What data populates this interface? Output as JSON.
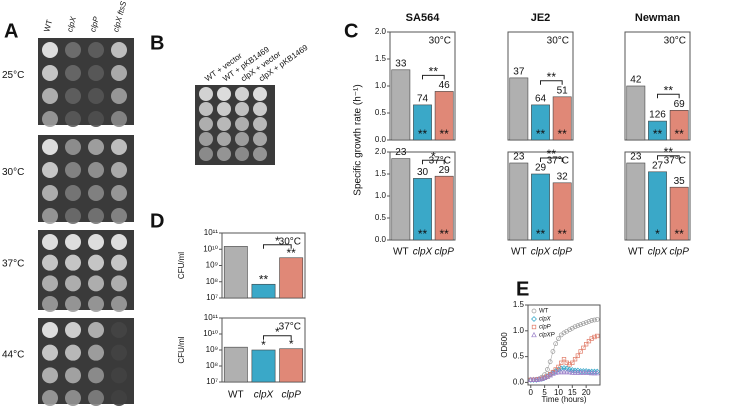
{
  "panel_labels": [
    "A",
    "B",
    "C",
    "D",
    "E"
  ],
  "plates_a": {
    "columns": [
      "WT",
      "clpX",
      "clpP",
      "clpX ftsS"
    ],
    "rows": [
      "25°C",
      "30°C",
      "37°C",
      "44°C"
    ]
  },
  "plates_b": {
    "columns": [
      "WT + vector",
      "WT + pKB1469",
      "clpX + vector",
      "clpX + pKB1469"
    ]
  },
  "chart_data": [
    {
      "type": "bar",
      "title": "SA564",
      "annotation": "30°C",
      "ylabel": "Specific growth rate (h⁻¹)",
      "categories": [
        null,
        null,
        null
      ],
      "values": [
        1.3,
        0.65,
        0.9
      ],
      "bar_labels": [
        33,
        74,
        46
      ],
      "stars": [
        null,
        "**",
        "**"
      ],
      "bracket": "**",
      "colors": [
        "#b0b0b0",
        "#3aa8c8",
        "#e08877"
      ],
      "ylim": [
        0,
        2
      ],
      "yticks": [
        {
          "value": 0,
          "label": "0.0"
        },
        0.5,
        {
          "value": 1,
          "label": "1.0"
        },
        1.5,
        {
          "value": 2,
          "label": "2.0"
        }
      ]
    },
    {
      "type": "bar",
      "title": "JE2",
      "annotation": "30°C",
      "categories": [
        null,
        null,
        null
      ],
      "values": [
        1.15,
        0.65,
        0.8
      ],
      "bar_labels": [
        37,
        64,
        51
      ],
      "stars": [
        null,
        "**",
        "**"
      ],
      "bracket": "**",
      "colors": [
        "#b0b0b0",
        "#3aa8c8",
        "#e08877"
      ],
      "ylim": [
        0,
        2
      ]
    },
    {
      "type": "bar",
      "title": "Newman",
      "annotation": "30°C",
      "categories": [
        null,
        null,
        null
      ],
      "values": [
        1.0,
        0.35,
        0.55
      ],
      "bar_labels": [
        42,
        126,
        69
      ],
      "stars": [
        null,
        "**",
        "**"
      ],
      "bracket": "**",
      "colors": [
        "#b0b0b0",
        "#3aa8c8",
        "#e08877"
      ],
      "ylim": [
        0,
        2
      ]
    },
    {
      "type": "bar",
      "annotation": "37°C",
      "categories": [
        "WT",
        "clpX",
        "clpP"
      ],
      "values": [
        1.85,
        1.4,
        1.45
      ],
      "bar_labels": [
        23,
        30,
        29
      ],
      "stars": [
        null,
        "**",
        "**"
      ],
      "bracket": "*",
      "colors": [
        "#b0b0b0",
        "#3aa8c8",
        "#e08877"
      ],
      "ylim": [
        0,
        2
      ],
      "yticks": [
        {
          "value": 0,
          "label": "0.0"
        },
        0.5,
        {
          "value": 1,
          "label": "1.0"
        },
        1.5,
        {
          "value": 2,
          "label": "2.0"
        }
      ]
    },
    {
      "type": "bar",
      "annotation": "37°C",
      "categories": [
        "WT",
        "clpX",
        "clpP"
      ],
      "values": [
        1.75,
        1.5,
        1.3
      ],
      "bar_labels": [
        23,
        29,
        32
      ],
      "stars": [
        null,
        "**",
        "**"
      ],
      "bracket": "**",
      "colors": [
        "#b0b0b0",
        "#3aa8c8",
        "#e08877"
      ],
      "ylim": [
        0,
        2
      ]
    },
    {
      "type": "bar",
      "annotation": "37°C",
      "categories": [
        "WT",
        "clpX",
        "clpP"
      ],
      "values": [
        1.75,
        1.55,
        1.2
      ],
      "bar_labels": [
        23,
        27,
        35
      ],
      "stars": [
        null,
        "*",
        "**"
      ],
      "bracket": "**",
      "colors": [
        "#b0b0b0",
        "#3aa8c8",
        "#e08877"
      ],
      "ylim": [
        0,
        2
      ]
    },
    {
      "type": "bar",
      "log_scale": true,
      "annotation": "30°C",
      "ylabel": "CFU/ml",
      "categories": [
        null,
        null,
        null
      ],
      "values": [
        15000000000,
        70000000,
        3000000000
      ],
      "stars": [
        null,
        "**",
        "**"
      ],
      "bracket": "*",
      "colors": [
        "#b0b0b0",
        "#3aa8c8",
        "#e08877"
      ],
      "ylim": [
        10000000,
        100000000000
      ],
      "yticks": [
        {
          "value": 10000000,
          "label": "10⁷"
        },
        {
          "value": 100000000,
          "label": "10⁸"
        },
        {
          "value": 1000000000,
          "label": "10⁹"
        },
        {
          "value": 10000000000,
          "label": "10¹⁰"
        },
        {
          "value": 100000000000,
          "label": "10¹¹"
        }
      ]
    },
    {
      "type": "bar",
      "log_scale": true,
      "annotation": "37°C",
      "ylabel": "CFU/ml",
      "categories": [
        "WT",
        "clpX",
        "clpP"
      ],
      "values": [
        1500000000,
        1000000000,
        1200000000
      ],
      "stars": [
        null,
        "*",
        "*"
      ],
      "bracket": "*",
      "colors": [
        "#b0b0b0",
        "#3aa8c8",
        "#e08877"
      ],
      "ylim": [
        10000000,
        100000000000
      ],
      "yticks": [
        {
          "value": 10000000,
          "label": "10⁷"
        },
        {
          "value": 100000000,
          "label": "10⁸"
        },
        {
          "value": 1000000000,
          "label": "10⁹"
        },
        {
          "value": 10000000000,
          "label": "10¹⁰"
        },
        {
          "value": 100000000000,
          "label": "10¹¹"
        }
      ]
    },
    {
      "type": "line",
      "xlabel": "Time (hours)",
      "ylabel": "OD600",
      "x": [
        0,
        1,
        2,
        3,
        4,
        5,
        6,
        7,
        8,
        9,
        10,
        11,
        12,
        13,
        14,
        15,
        16,
        17,
        18,
        19,
        20,
        21,
        22,
        23,
        24
      ],
      "series": [
        {
          "name": "WT",
          "color": "#999999",
          "marker": "circle",
          "values": [
            0.05,
            0.05,
            0.06,
            0.07,
            0.1,
            0.15,
            0.25,
            0.4,
            0.6,
            0.75,
            0.85,
            0.92,
            0.96,
            0.99,
            1.02,
            1.05,
            1.08,
            1.1,
            1.12,
            1.14,
            1.16,
            1.18,
            1.2,
            1.21,
            1.22
          ]
        },
        {
          "name": "clpX",
          "color": "#2fa6c8",
          "marker": "diamond",
          "values": [
            0.05,
            0.05,
            0.05,
            0.06,
            0.07,
            0.09,
            0.12,
            0.15,
            0.19,
            0.22,
            0.25,
            0.27,
            0.28,
            0.27,
            0.25,
            0.24,
            0.23,
            0.23,
            0.22,
            0.22,
            0.22,
            0.21,
            0.21,
            0.21,
            0.21
          ]
        },
        {
          "name": "clpP",
          "color": "#e07a66",
          "marker": "square",
          "values": [
            0.05,
            0.05,
            0.05,
            0.06,
            0.07,
            0.09,
            0.12,
            0.16,
            0.2,
            0.25,
            0.3,
            0.38,
            0.45,
            0.38,
            0.35,
            0.38,
            0.45,
            0.52,
            0.6,
            0.67,
            0.74,
            0.8,
            0.85,
            0.88,
            0.9
          ]
        },
        {
          "name": "clpXP",
          "color": "#9a7fc8",
          "marker": "triangle",
          "values": [
            0.05,
            0.05,
            0.05,
            0.06,
            0.07,
            0.09,
            0.11,
            0.14,
            0.17,
            0.19,
            0.2,
            0.2,
            0.2,
            0.2,
            0.2,
            0.19,
            0.19,
            0.19,
            0.19,
            0.19,
            0.19,
            0.19,
            0.18,
            0.18,
            0.18
          ]
        }
      ],
      "xlim": [
        -1,
        25
      ],
      "xticks": [
        0,
        5,
        10,
        15,
        20
      ],
      "ylim": [
        -0.05,
        1.5
      ],
      "yticks": [
        {
          "value": 0,
          "label": "0.0"
        },
        0.5,
        {
          "value": 1,
          "label": "1.0"
        },
        1.5
      ]
    }
  ]
}
